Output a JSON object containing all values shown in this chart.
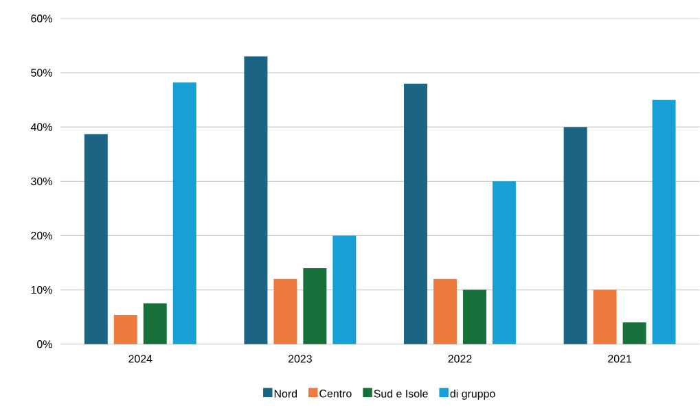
{
  "chart_data": {
    "type": "bar",
    "categories": [
      "2024",
      "2023",
      "2022",
      "2021"
    ],
    "series": [
      {
        "name": "Nord",
        "color": "#1b6483",
        "values": [
          38.7,
          53,
          48,
          40
        ]
      },
      {
        "name": "Centro",
        "color": "#ee7b3e",
        "values": [
          5.4,
          12,
          12,
          10
        ]
      },
      {
        "name": "Sud e Isole",
        "color": "#18703a",
        "values": [
          7.5,
          14,
          10,
          4
        ]
      },
      {
        "name": "di gruppo",
        "color": "#18a0d6",
        "values": [
          48.2,
          20,
          30,
          45
        ]
      }
    ],
    "ylim": [
      0,
      60
    ],
    "yticks": [
      {
        "value": 0,
        "label": "0%"
      },
      {
        "value": 10,
        "label": "10%"
      },
      {
        "value": 20,
        "label": "20%"
      },
      {
        "value": 30,
        "label": "30%"
      },
      {
        "value": 40,
        "label": "40%"
      },
      {
        "value": 50,
        "label": "50%"
      },
      {
        "value": 60,
        "label": "60%"
      }
    ],
    "grid": "y",
    "legend": "bottom"
  }
}
